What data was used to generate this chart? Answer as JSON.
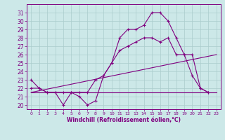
{
  "background_color": "#cce8e8",
  "grid_color": "#aacccc",
  "line_color": "#800080",
  "xlabel": "Windchill (Refroidissement éolien,°C)",
  "xlim": [
    -0.5,
    23.5
  ],
  "ylim": [
    19.5,
    32
  ],
  "yticks": [
    20,
    21,
    22,
    23,
    24,
    25,
    26,
    27,
    28,
    29,
    30,
    31
  ],
  "xticks": [
    0,
    1,
    2,
    3,
    4,
    5,
    6,
    7,
    8,
    9,
    10,
    11,
    12,
    13,
    14,
    15,
    16,
    17,
    18,
    19,
    20,
    21,
    22,
    23
  ],
  "series_main": {
    "x": [
      0,
      1,
      2,
      3,
      4,
      5,
      6,
      7,
      8,
      9,
      10,
      11,
      12,
      13,
      14,
      15,
      16,
      17,
      18,
      19,
      20,
      21,
      22,
      23
    ],
    "y": [
      23,
      22,
      21.5,
      21.5,
      20,
      21.5,
      21.0,
      20.0,
      20.5,
      23.5,
      25.0,
      28.0,
      29.0,
      29.0,
      29.5,
      31.0,
      31.0,
      30.0,
      28.0,
      26.0,
      23.5,
      22.0,
      21.5,
      null
    ]
  },
  "series_diagonal": {
    "x": [
      0,
      1,
      2,
      3,
      4,
      5,
      6,
      7,
      8,
      9,
      10,
      11,
      12,
      13,
      14,
      15,
      16,
      17,
      18,
      19,
      20,
      21,
      22,
      23
    ],
    "y": [
      22.0,
      22.0,
      21.5,
      21.5,
      21.5,
      21.5,
      21.5,
      21.5,
      23.0,
      23.5,
      25.0,
      26.5,
      27.0,
      27.5,
      28.0,
      28.0,
      27.5,
      28.0,
      26.0,
      26.0,
      26.0,
      22.0,
      21.5,
      null
    ]
  },
  "series_flat": {
    "x": [
      0,
      23
    ],
    "y": [
      21.5,
      21.5
    ]
  },
  "regression_line": {
    "x": [
      0,
      23
    ],
    "y": [
      21.5,
      26.0
    ]
  }
}
